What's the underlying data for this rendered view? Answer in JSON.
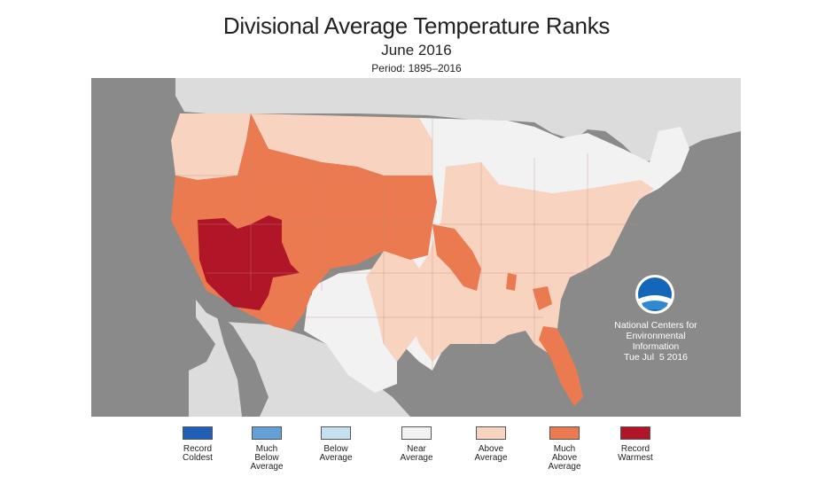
{
  "title": "Divisional Average Temperature Ranks",
  "subtitle": "June 2016",
  "period": "Period: 1895–2016",
  "credit": {
    "line1": "National Centers for",
    "line2": "Environmental",
    "line3": "Information",
    "date": "Tue Jul  5 2016",
    "logo_text": "NOAA"
  },
  "colors": {
    "land_bg": "#e0e0e0",
    "water": "#8a8a8a",
    "record_coldest": "#1f5fb5",
    "much_below": "#62a0d6",
    "below": "#c5e0ee",
    "near": "#f2f2f2",
    "above": "#f8d3c0",
    "much_above": "#eb7a50",
    "record_warmest": "#b01628"
  },
  "legend": [
    {
      "line1": "Record",
      "line2": "Coldest",
      "line3": "",
      "color": "#1f5fb5"
    },
    {
      "line1": "Much",
      "line2": "Below",
      "line3": "Average",
      "color": "#62a0d6"
    },
    {
      "line1": "Below",
      "line2": "Average",
      "line3": "",
      "color": "#c5e0ee"
    },
    {
      "line1": "Near",
      "line2": "Average",
      "line3": "",
      "color": "#f2f2f2"
    },
    {
      "line1": "Above",
      "line2": "Average",
      "line3": "",
      "color": "#f8d3c0"
    },
    {
      "line1": "Much",
      "line2": "Above",
      "line3": "Average",
      "color": "#eb7a50"
    },
    {
      "line1": "Record",
      "line2": "Warmest",
      "line3": "",
      "color": "#b01628"
    }
  ]
}
